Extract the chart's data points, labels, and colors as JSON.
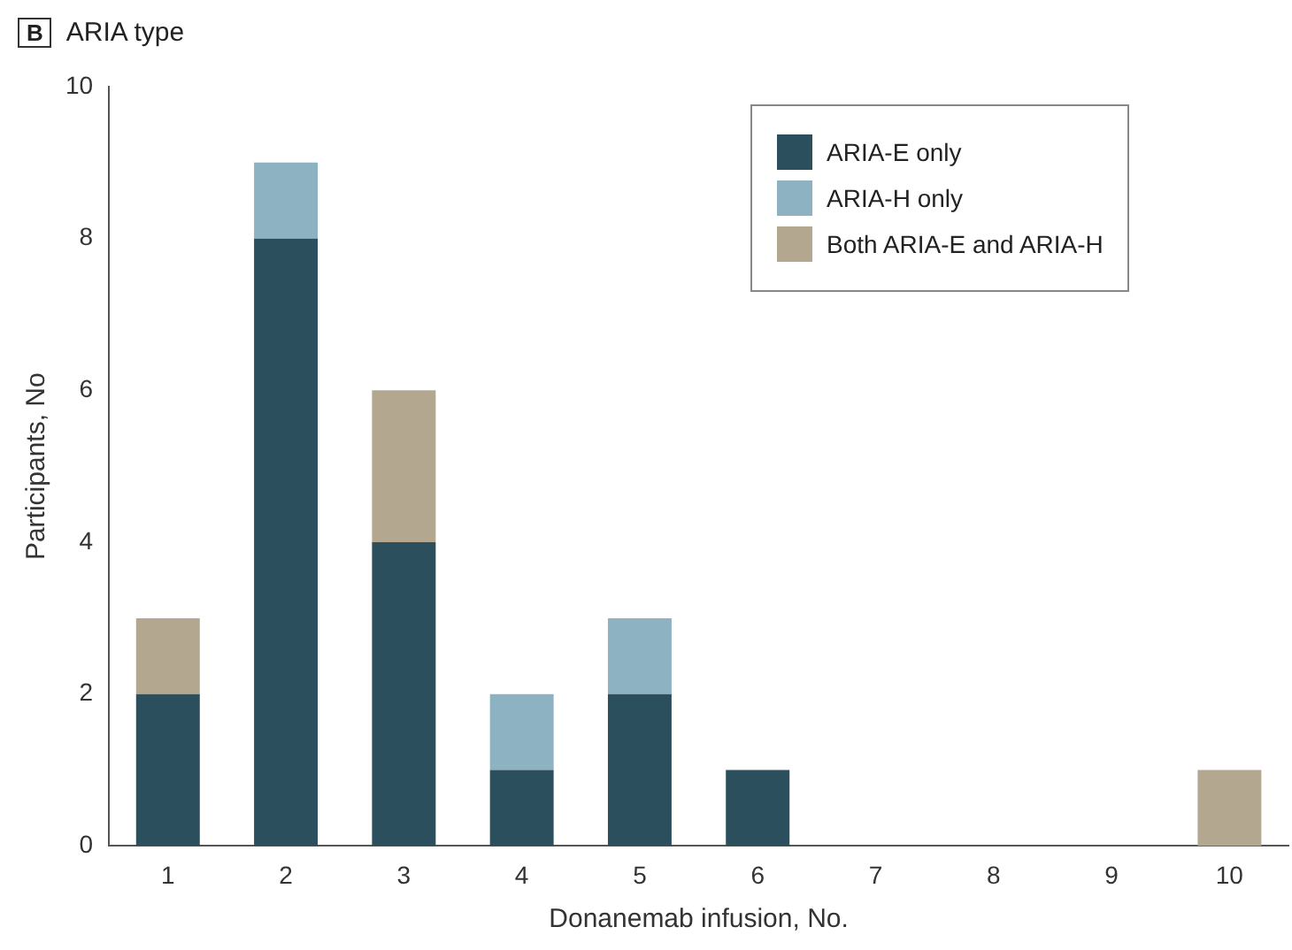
{
  "chart_data": {
    "type": "bar",
    "title": "ARIA type",
    "annotations": [
      "B"
    ],
    "xlabel": "Donanemab infusion, No.",
    "ylabel": "Participants, No",
    "categories": [
      "1",
      "2",
      "3",
      "4",
      "5",
      "6",
      "7",
      "8",
      "9",
      "10"
    ],
    "stacked": true,
    "series": [
      {
        "name": "ARIA-E only",
        "color": "#2b4f5c",
        "values": [
          2,
          8,
          4,
          1,
          2,
          1,
          0,
          0,
          0,
          0
        ]
      },
      {
        "name": "ARIA-H only",
        "color": "#8db2c1",
        "values": [
          0,
          1,
          0,
          1,
          1,
          0,
          0,
          0,
          0,
          0
        ]
      },
      {
        "name": "Both ARIA-E and ARIA-H",
        "color": "#b3a78f",
        "values": [
          1,
          0,
          2,
          0,
          0,
          0,
          0,
          0,
          0,
          1
        ]
      }
    ],
    "ylim": [
      0,
      10
    ],
    "yticks": [
      0,
      2,
      4,
      6,
      8,
      10
    ],
    "grid": false,
    "legend": "top right"
  }
}
